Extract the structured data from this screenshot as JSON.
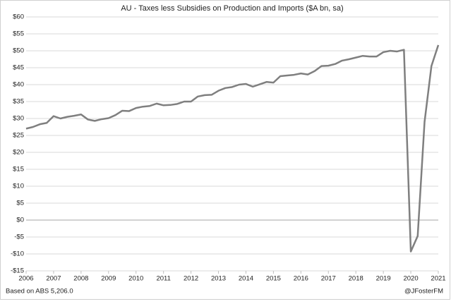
{
  "chart_data": {
    "type": "line",
    "title": "AU - Taxes less Subsidies on Production and Imports ($A bn, sa)",
    "source": "Based on ABS 5,206.0",
    "credit": "@JFosterFM",
    "color": "#7f7f7f",
    "grid": true,
    "x": [
      2006,
      2006.25,
      2006.5,
      2006.75,
      2007,
      2007.25,
      2007.5,
      2007.75,
      2008,
      2008.25,
      2008.5,
      2008.75,
      2009,
      2009.25,
      2009.5,
      2009.75,
      2010,
      2010.25,
      2010.5,
      2010.75,
      2011,
      2011.25,
      2011.5,
      2011.75,
      2012,
      2012.25,
      2012.5,
      2012.75,
      2013,
      2013.25,
      2013.5,
      2013.75,
      2014,
      2014.25,
      2014.5,
      2014.75,
      2015,
      2015.25,
      2015.5,
      2015.75,
      2016,
      2016.25,
      2016.5,
      2016.75,
      2017,
      2017.25,
      2017.5,
      2017.75,
      2018,
      2018.25,
      2018.5,
      2018.75,
      2019,
      2019.25,
      2019.5,
      2019.75,
      2020,
      2020.25,
      2020.5,
      2020.75,
      2021
    ],
    "values": [
      27.0,
      27.5,
      28.3,
      28.7,
      30.7,
      30.0,
      30.5,
      30.8,
      31.2,
      29.7,
      29.3,
      29.8,
      30.1,
      31.0,
      32.3,
      32.2,
      33.1,
      33.5,
      33.7,
      34.4,
      33.9,
      34.0,
      34.3,
      35.0,
      35.0,
      36.5,
      36.9,
      37.0,
      38.2,
      39.0,
      39.3,
      40.0,
      40.2,
      39.4,
      40.1,
      40.8,
      40.6,
      42.5,
      42.7,
      42.9,
      43.3,
      43.0,
      44.0,
      45.5,
      45.6,
      46.1,
      47.1,
      47.5,
      48.0,
      48.5,
      48.3,
      48.3,
      49.6,
      50.0,
      49.8,
      50.3,
      -9.3,
      -4.7,
      29.0,
      45.5,
      51.7
    ],
    "xlim": [
      2006,
      2021
    ],
    "xticks": [
      2006,
      2007,
      2008,
      2009,
      2010,
      2011,
      2012,
      2013,
      2014,
      2015,
      2016,
      2017,
      2018,
      2019,
      2020,
      2021
    ],
    "ylim": [
      -15,
      60
    ],
    "yticks": [
      {
        "value": -15,
        "label": "-$15"
      },
      {
        "value": -10,
        "label": "-$10"
      },
      {
        "value": -5,
        "label": "-$5"
      },
      {
        "value": 0,
        "label": "$0"
      },
      {
        "value": 5,
        "label": "$5"
      },
      {
        "value": 10,
        "label": "$10"
      },
      {
        "value": 15,
        "label": "$15"
      },
      {
        "value": 20,
        "label": "$20"
      },
      {
        "value": 25,
        "label": "$25"
      },
      {
        "value": 30,
        "label": "$30"
      },
      {
        "value": 35,
        "label": "$35"
      },
      {
        "value": 40,
        "label": "$40"
      },
      {
        "value": 45,
        "label": "$45"
      },
      {
        "value": 50,
        "label": "$50"
      },
      {
        "value": 55,
        "label": "$55"
      },
      {
        "value": 60,
        "label": "$60"
      }
    ]
  }
}
